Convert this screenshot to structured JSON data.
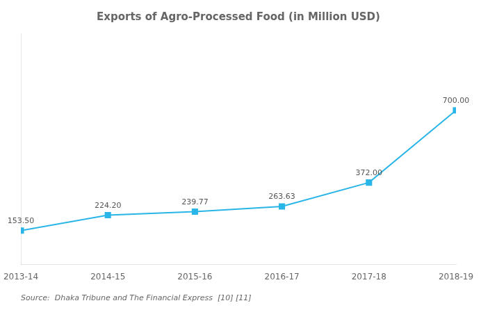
{
  "chart_data": {
    "type": "line",
    "title": "Exports of Agro-Processed Food (in Million USD)",
    "categories": [
      "2013-14",
      "2014-15",
      "2015-16",
      "2016-17",
      "2017-18",
      "2018-19"
    ],
    "values": [
      153.5,
      224.2,
      239.77,
      263.63,
      372.0,
      700.0
    ],
    "value_labels": [
      "153.50",
      "224.20",
      "239.77",
      "263.63",
      "372.00",
      "700.00"
    ],
    "data_labels": true,
    "color": "#29B5E8",
    "marker": "square",
    "ylim": [
      0,
      1050
    ],
    "grid": false,
    "tick_labels": "x",
    "annotations": [
      "Source:  Dhaka Tribune and The Financial Express  [10] [11]"
    ]
  }
}
